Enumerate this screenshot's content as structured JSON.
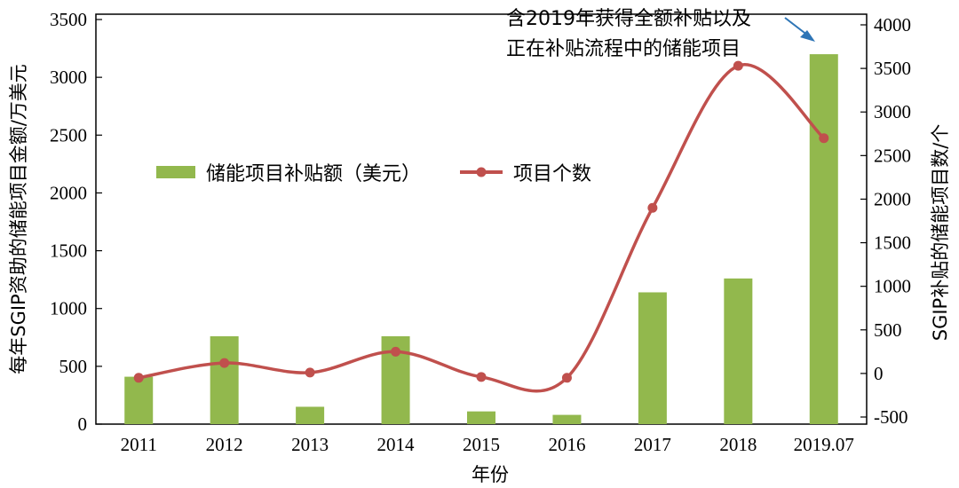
{
  "chart_data": {
    "type": "bar",
    "categories": [
      "2011",
      "2012",
      "2013",
      "2014",
      "2015",
      "2016",
      "2017",
      "2018",
      "2019.07"
    ],
    "xlabel": "年份",
    "ylabel_left": "每年SGIP资助的储能项目金额/万美元",
    "ylabel_right": "SGIP补贴的储能项目数/个",
    "ylim_left": [
      0,
      3500
    ],
    "ylim_right": [
      -500,
      4000
    ],
    "yticks_left": [
      "0",
      "500",
      "1000",
      "1500",
      "2000",
      "2500",
      "3000",
      "3500"
    ],
    "yticks_right": [
      "-500",
      "0",
      "500",
      "1000",
      "1500",
      "2000",
      "2500",
      "3000",
      "3500",
      "4000"
    ],
    "series": [
      {
        "name": "储能项目补贴额（美元）",
        "type": "bar",
        "axis": "left",
        "color": "#92b84d",
        "values": [
          410,
          760,
          150,
          760,
          110,
          80,
          1140,
          1260,
          3200
        ]
      },
      {
        "name": "项目个数",
        "type": "line",
        "axis": "right",
        "color": "#c0504d",
        "smooth": true,
        "values": [
          -50,
          120,
          10,
          250,
          -40,
          -50,
          1900,
          3530,
          2700
        ]
      }
    ],
    "legend_position": "center-left",
    "annotation": [
      "含2019年获得全额补贴以及",
      "正在补贴流程中的储能项目"
    ],
    "grid": false
  }
}
